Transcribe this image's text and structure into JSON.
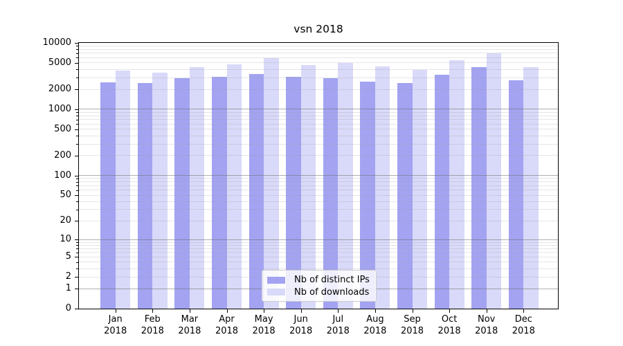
{
  "chart_data": {
    "type": "bar",
    "title": "vsn 2018",
    "categories": [
      "Jan",
      "Feb",
      "Mar",
      "Apr",
      "May",
      "Jun",
      "Jul",
      "Aug",
      "Sep",
      "Oct",
      "Nov",
      "Dec"
    ],
    "x_sub_label": "2018",
    "series": [
      {
        "name": "Nb of distinct IPs",
        "color": "#a3a3f2",
        "values": [
          2550,
          2500,
          2930,
          3050,
          3400,
          3100,
          2970,
          2640,
          2500,
          3300,
          4270,
          2770
        ]
      },
      {
        "name": "Nb of downloads",
        "color": "#d9d9f9",
        "values": [
          3800,
          3600,
          4300,
          4750,
          5950,
          4650,
          5000,
          4450,
          3950,
          5450,
          6900,
          4270
        ]
      }
    ],
    "y_scale": "log1p",
    "ylim": [
      0,
      10000
    ],
    "y_ticks": [
      0,
      1,
      2,
      5,
      10,
      20,
      50,
      100,
      200,
      500,
      1000,
      2000,
      5000,
      10000
    ],
    "y_major_gridlines": [
      1,
      10,
      100,
      1000,
      10000
    ],
    "grid": "major+minor",
    "legend_position": "bottom-center",
    "axis_color": "#000000",
    "background_color": "#ffffff"
  }
}
